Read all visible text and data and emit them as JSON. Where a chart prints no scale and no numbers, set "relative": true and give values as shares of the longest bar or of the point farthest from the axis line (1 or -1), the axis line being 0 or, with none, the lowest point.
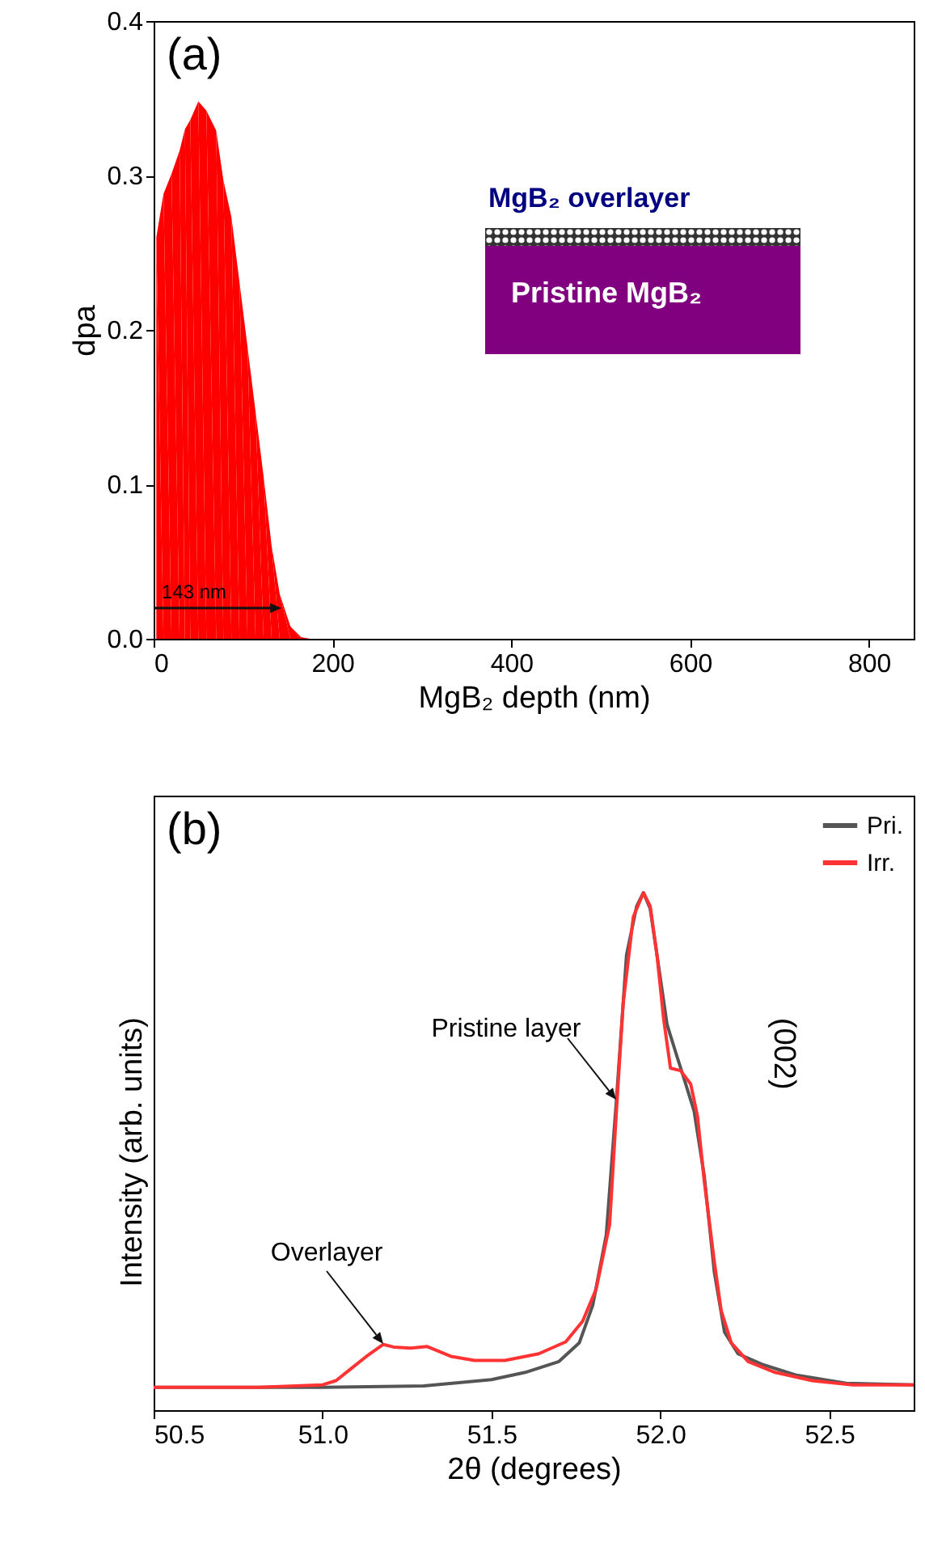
{
  "chart_data": [
    {
      "type": "area",
      "title": "(a)",
      "xlabel": "MgB₂ depth (nm)",
      "ylabel": "dpa",
      "xlim": [
        0,
        850
      ],
      "ylim": [
        0,
        0.4
      ],
      "xticks": [
        0,
        200,
        400,
        600,
        800
      ],
      "yticks": [
        {
          "value": 0,
          "label": "0.0"
        },
        0.1,
        0.2,
        0.3,
        0.4
      ],
      "grid": false,
      "annotations": [
        {
          "text": "143 nm",
          "x": 143,
          "y": 0.02
        },
        "MgB₂ overlayer",
        "Pristine MgB₂"
      ],
      "series": [
        {
          "color": "#ff0000",
          "x": [
            3,
            3,
            11,
            20,
            29,
            35,
            41,
            50,
            59,
            70,
            78,
            87,
            96,
            105,
            114,
            123,
            132,
            141,
            153,
            165,
            175
          ],
          "values": [
            0,
            0.26,
            0.288,
            0.301,
            0.316,
            0.33,
            0.336,
            0.348,
            0.342,
            0.329,
            0.297,
            0.273,
            0.231,
            0.189,
            0.147,
            0.105,
            0.06,
            0.029,
            0.008,
            0.001,
            0
          ]
        }
      ]
    },
    {
      "type": "line",
      "title": "(b)",
      "xlabel": "2θ (degrees)",
      "ylabel": "Intensity (arb. units)",
      "relative": true,
      "xlim": [
        50.5,
        52.75
      ],
      "xticks": [
        50.5,
        {
          "value": 51,
          "label": "51.0"
        },
        51.5,
        {
          "value": 52,
          "label": "52.0"
        },
        52.5
      ],
      "grid": false,
      "legend": "top right",
      "annotations": [
        {
          "text": "Overlayer",
          "x": 51.18,
          "y": 0.127
        },
        {
          "text": "Pristine layer",
          "x": 51.87,
          "y": 0.6
        },
        "(002)"
      ],
      "series": [
        {
          "name": "Pri.",
          "color": "#555555",
          "x": [
            50.5,
            51.0,
            51.3,
            51.5,
            51.6,
            51.7,
            51.76,
            51.8,
            51.84,
            51.87,
            51.9,
            51.93,
            51.95,
            51.97,
            51.99,
            52.02,
            52.05,
            52.07,
            52.1,
            52.13,
            52.16,
            52.19,
            52.23,
            52.3,
            52.4,
            52.55,
            52.75
          ],
          "values": [
            0.044,
            0.044,
            0.047,
            0.059,
            0.073,
            0.094,
            0.13,
            0.203,
            0.339,
            0.599,
            0.88,
            0.974,
            1.0,
            0.969,
            0.88,
            0.745,
            0.682,
            0.641,
            0.578,
            0.453,
            0.266,
            0.151,
            0.109,
            0.089,
            0.068,
            0.052,
            0.049
          ]
        },
        {
          "name": "Irr.",
          "color": "#ff3333",
          "x": [
            50.5,
            50.81,
            51.0,
            51.04,
            51.08,
            51.13,
            51.18,
            51.21,
            51.26,
            51.31,
            51.38,
            51.45,
            51.54,
            51.64,
            51.72,
            51.77,
            51.81,
            51.85,
            51.87,
            51.89,
            51.92,
            51.95,
            51.97,
            51.99,
            52.01,
            52.03,
            52.06,
            52.09,
            52.11,
            52.13,
            52.16,
            52.18,
            52.21,
            52.26,
            52.34,
            52.45,
            52.57,
            52.75
          ],
          "values": [
            0.044,
            0.044,
            0.049,
            0.057,
            0.078,
            0.104,
            0.127,
            0.122,
            0.12,
            0.123,
            0.104,
            0.096,
            0.096,
            0.109,
            0.132,
            0.172,
            0.234,
            0.359,
            0.578,
            0.786,
            0.953,
            1.0,
            0.974,
            0.88,
            0.755,
            0.661,
            0.656,
            0.63,
            0.568,
            0.443,
            0.286,
            0.193,
            0.13,
            0.094,
            0.073,
            0.057,
            0.049,
            0.049
          ]
        }
      ]
    }
  ]
}
